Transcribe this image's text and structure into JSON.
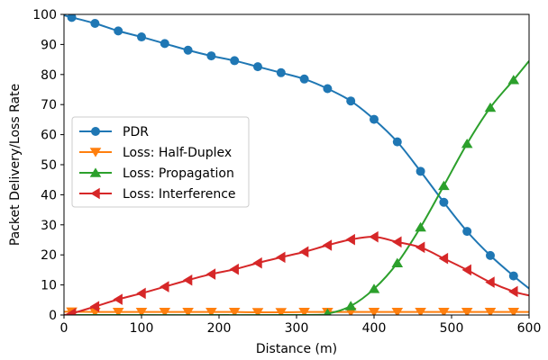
{
  "chart_data": {
    "type": "line",
    "xlabel": "Distance (m)",
    "ylabel": "Packet Delivery/Loss Rate",
    "xlim": [
      0,
      600
    ],
    "ylim": [
      0,
      100
    ],
    "xticks": [
      0,
      100,
      200,
      300,
      400,
      500,
      600
    ],
    "yticks": [
      0,
      10,
      20,
      30,
      40,
      50,
      60,
      70,
      80,
      90,
      100
    ],
    "grid": false,
    "legend_position": "center-left",
    "series": [
      {
        "name": "PDR",
        "color": "#1f77b4",
        "marker": "circle",
        "x": [
          10,
          40,
          70,
          100,
          130,
          160,
          190,
          220,
          250,
          280,
          310,
          340,
          370,
          400,
          430,
          460,
          490,
          520,
          550,
          580
        ],
        "y": [
          99,
          97,
          94.5,
          92.5,
          90.3,
          88.1,
          86.2,
          84.6,
          82.6,
          80.6,
          78.5,
          75.3,
          71.2,
          65.1,
          57.6,
          47.8,
          37.5,
          27.8,
          19.8,
          13
        ],
        "line_x": [
          0,
          10,
          40,
          70,
          100,
          130,
          160,
          190,
          220,
          250,
          280,
          310,
          340,
          370,
          400,
          430,
          460,
          490,
          520,
          550,
          580,
          600
        ],
        "line_y": [
          99.7,
          99,
          97,
          94.5,
          92.5,
          90.3,
          88.1,
          86.2,
          84.6,
          82.6,
          80.6,
          78.5,
          75.3,
          71.2,
          65.1,
          57.6,
          47.8,
          37.5,
          27.8,
          19.8,
          13,
          8.8
        ]
      },
      {
        "name": "Loss: Half-Duplex",
        "color": "#ff7f0e",
        "marker": "triangle-down",
        "x": [
          10,
          40,
          70,
          100,
          130,
          160,
          190,
          220,
          250,
          280,
          310,
          340,
          370,
          400,
          430,
          460,
          490,
          520,
          550,
          580
        ],
        "y": [
          1.1,
          1.0,
          1.0,
          1.0,
          1.0,
          1.0,
          1.0,
          1.0,
          0.9,
          0.9,
          1.0,
          1.0,
          1.0,
          1.0,
          1.0,
          1.0,
          1.0,
          1.0,
          1.0,
          1.0
        ],
        "line_x": [
          0,
          10,
          40,
          70,
          100,
          130,
          160,
          190,
          220,
          250,
          280,
          310,
          340,
          370,
          400,
          430,
          460,
          490,
          520,
          550,
          580,
          600
        ],
        "line_y": [
          1.1,
          1.1,
          1.0,
          1.0,
          1.0,
          1.0,
          1.0,
          1.0,
          1.0,
          0.9,
          0.9,
          1.0,
          1.0,
          1.0,
          1.0,
          1.0,
          1.0,
          1.0,
          1.0,
          1.0,
          1.0,
          1.0
        ]
      },
      {
        "name": "Loss: Propagation",
        "color": "#2ca02c",
        "marker": "triangle-up",
        "x": [
          340,
          370,
          400,
          430,
          460,
          490,
          520,
          550,
          580
        ],
        "y": [
          0.5,
          3,
          8.7,
          17.3,
          29.2,
          43,
          57,
          69,
          78.2
        ],
        "line_x": [
          0,
          300,
          340,
          370,
          400,
          430,
          460,
          490,
          520,
          550,
          580,
          600
        ],
        "line_y": [
          0,
          0,
          0.5,
          3,
          8.7,
          17.3,
          29.2,
          43,
          57,
          69,
          78.2,
          84.5
        ]
      },
      {
        "name": "Loss: Interference",
        "color": "#d62728",
        "marker": "triangle-left",
        "x": [
          10,
          40,
          70,
          100,
          130,
          160,
          190,
          220,
          250,
          280,
          310,
          340,
          370,
          400,
          430,
          460,
          490,
          520,
          550,
          580
        ],
        "y": [
          0.5,
          2.8,
          5.2,
          7.2,
          9.4,
          11.6,
          13.6,
          15.2,
          17.3,
          19.2,
          21.0,
          23.2,
          25.1,
          26.0,
          24.3,
          22.5,
          18.8,
          15.0,
          10.9,
          7.8
        ],
        "line_x": [
          0,
          10,
          40,
          70,
          100,
          130,
          160,
          190,
          220,
          250,
          280,
          310,
          340,
          370,
          400,
          430,
          460,
          490,
          520,
          550,
          580,
          600
        ],
        "line_y": [
          0,
          0.5,
          2.8,
          5.2,
          7.2,
          9.4,
          11.6,
          13.6,
          15.2,
          17.3,
          19.2,
          21.0,
          23.2,
          25.1,
          26.0,
          24.3,
          22.5,
          18.8,
          15.0,
          10.9,
          7.8,
          6.5
        ]
      }
    ]
  }
}
